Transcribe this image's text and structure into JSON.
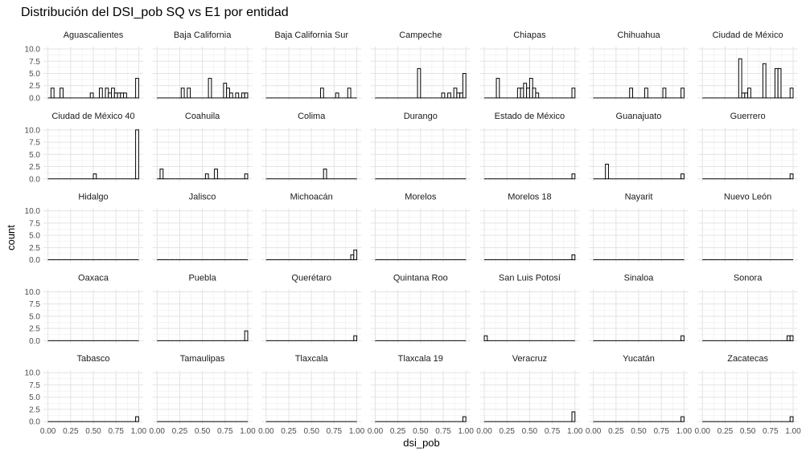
{
  "chart_data": {
    "type": "histogram-facets",
    "title": "Distribución del DSI_pob SQ vs E1 por entidad",
    "xlabel": "dsi_pob",
    "ylabel": "count",
    "xlim": [
      0,
      1
    ],
    "ylim": [
      0,
      10
    ],
    "x_ticks": [
      "0.00",
      "0.25",
      "0.50",
      "0.75",
      "1.00"
    ],
    "y_ticks": [
      "0.0",
      "2.5",
      "5.0",
      "7.5",
      "10.0"
    ],
    "bins": 30,
    "bar_color": "#000000",
    "fill_color": "#ffffff",
    "grid": true,
    "facets": [
      {
        "name": "Aguascalientes",
        "counts": [
          0,
          2,
          0,
          0,
          2,
          0,
          0,
          0,
          0,
          0,
          0,
          0,
          0,
          0,
          1,
          0,
          0,
          2,
          0,
          2,
          1,
          2,
          1,
          1,
          1,
          1,
          0,
          0,
          0,
          4
        ]
      },
      {
        "name": "Baja California",
        "counts": [
          0,
          0,
          0,
          0,
          0,
          0,
          0,
          0,
          2,
          0,
          2,
          0,
          0,
          0,
          0,
          0,
          0,
          4,
          0,
          0,
          0,
          0,
          3,
          2,
          1,
          0,
          1,
          0,
          1,
          1
        ]
      },
      {
        "name": "Baja California Sur",
        "counts": [
          0,
          0,
          0,
          0,
          0,
          0,
          0,
          0,
          0,
          0,
          0,
          0,
          0,
          0,
          0,
          0,
          0,
          0,
          2,
          0,
          0,
          0,
          0,
          1,
          0,
          0,
          0,
          2,
          0,
          0
        ]
      },
      {
        "name": "Campeche",
        "counts": [
          0,
          0,
          0,
          0,
          0,
          0,
          0,
          0,
          0,
          0,
          0,
          0,
          0,
          0,
          6,
          0,
          0,
          0,
          0,
          0,
          0,
          0,
          1,
          0,
          1,
          0,
          2,
          1,
          1,
          5
        ]
      },
      {
        "name": "Chiapas",
        "counts": [
          0,
          0,
          0,
          0,
          4,
          0,
          0,
          0,
          0,
          0,
          0,
          2,
          2,
          3,
          2,
          4,
          2,
          1,
          0,
          0,
          0,
          0,
          0,
          0,
          0,
          0,
          0,
          0,
          0,
          2
        ]
      },
      {
        "name": "Chihuahua",
        "counts": [
          0,
          0,
          0,
          0,
          0,
          0,
          0,
          0,
          0,
          0,
          0,
          0,
          2,
          0,
          0,
          0,
          0,
          2,
          0,
          0,
          0,
          0,
          0,
          2,
          0,
          0,
          0,
          0,
          0,
          2
        ]
      },
      {
        "name": "Ciudad de México",
        "counts": [
          0,
          0,
          0,
          0,
          0,
          0,
          0,
          0,
          0,
          0,
          0,
          0,
          8,
          1,
          1,
          2,
          0,
          0,
          0,
          0,
          7,
          0,
          0,
          0,
          6,
          6,
          0,
          0,
          0,
          2
        ]
      },
      {
        "name": "Ciudad de México 40",
        "counts": [
          0,
          0,
          0,
          0,
          0,
          0,
          0,
          0,
          0,
          0,
          0,
          0,
          0,
          0,
          0,
          1,
          0,
          0,
          0,
          0,
          0,
          0,
          0,
          0,
          0,
          0,
          0,
          0,
          0,
          10
        ]
      },
      {
        "name": "Coahuila",
        "counts": [
          0,
          2,
          0,
          0,
          0,
          0,
          0,
          0,
          0,
          0,
          0,
          0,
          0,
          0,
          0,
          0,
          1,
          0,
          0,
          2,
          0,
          0,
          0,
          0,
          0,
          0,
          0,
          0,
          0,
          1
        ]
      },
      {
        "name": "Colima",
        "counts": [
          0,
          0,
          0,
          0,
          0,
          0,
          0,
          0,
          0,
          0,
          0,
          0,
          0,
          0,
          0,
          0,
          0,
          0,
          0,
          2,
          0,
          0,
          0,
          0,
          0,
          0,
          0,
          0,
          0,
          0
        ]
      },
      {
        "name": "Durango",
        "counts": [
          0,
          0,
          0,
          0,
          0,
          0,
          0,
          0,
          0,
          0,
          0,
          0,
          0,
          0,
          0,
          0,
          0,
          0,
          0,
          0,
          0,
          0,
          0,
          0,
          0,
          0,
          0,
          0,
          0,
          0
        ]
      },
      {
        "name": "Estado de México",
        "counts": [
          0,
          0,
          0,
          0,
          0,
          0,
          0,
          0,
          0,
          0,
          0,
          0,
          0,
          0,
          0,
          0,
          0,
          0,
          0,
          0,
          0,
          0,
          0,
          0,
          0,
          0,
          0,
          0,
          0,
          1
        ]
      },
      {
        "name": "Guanajuato",
        "counts": [
          0,
          0,
          0,
          0,
          3,
          0,
          0,
          0,
          0,
          0,
          0,
          0,
          0,
          0,
          0,
          0,
          0,
          0,
          0,
          0,
          0,
          0,
          0,
          0,
          0,
          0,
          0,
          0,
          0,
          1
        ]
      },
      {
        "name": "Guerrero",
        "counts": [
          0,
          0,
          0,
          0,
          0,
          0,
          0,
          0,
          0,
          0,
          0,
          0,
          0,
          0,
          0,
          0,
          0,
          0,
          0,
          0,
          0,
          0,
          0,
          0,
          0,
          0,
          0,
          0,
          0,
          1
        ]
      },
      {
        "name": "Hidalgo",
        "counts": [
          0,
          0,
          0,
          0,
          0,
          0,
          0,
          0,
          0,
          0,
          0,
          0,
          0,
          0,
          0,
          0,
          0,
          0,
          0,
          0,
          0,
          0,
          0,
          0,
          0,
          0,
          0,
          0,
          0,
          0
        ]
      },
      {
        "name": "Jalisco",
        "counts": [
          0,
          0,
          0,
          0,
          0,
          0,
          0,
          0,
          0,
          0,
          0,
          0,
          0,
          0,
          0,
          0,
          0,
          0,
          0,
          0,
          0,
          0,
          0,
          0,
          0,
          0,
          0,
          0,
          0,
          0
        ]
      },
      {
        "name": "Michoacán",
        "counts": [
          0,
          0,
          0,
          0,
          0,
          0,
          0,
          0,
          0,
          0,
          0,
          0,
          0,
          0,
          0,
          0,
          0,
          0,
          0,
          0,
          0,
          0,
          0,
          0,
          0,
          0,
          0,
          0,
          1,
          2
        ]
      },
      {
        "name": "Morelos",
        "counts": [
          0,
          0,
          0,
          0,
          0,
          0,
          0,
          0,
          0,
          0,
          0,
          0,
          0,
          0,
          0,
          0,
          0,
          0,
          0,
          0,
          0,
          0,
          0,
          0,
          0,
          0,
          0,
          0,
          0,
          0
        ]
      },
      {
        "name": "Morelos 18",
        "counts": [
          0,
          0,
          0,
          0,
          0,
          0,
          0,
          0,
          0,
          0,
          0,
          0,
          0,
          0,
          0,
          0,
          0,
          0,
          0,
          0,
          0,
          0,
          0,
          0,
          0,
          0,
          0,
          0,
          0,
          1
        ]
      },
      {
        "name": "Nayarit",
        "counts": [
          0,
          0,
          0,
          0,
          0,
          0,
          0,
          0,
          0,
          0,
          0,
          0,
          0,
          0,
          0,
          0,
          0,
          0,
          0,
          0,
          0,
          0,
          0,
          0,
          0,
          0,
          0,
          0,
          0,
          0
        ]
      },
      {
        "name": "Nuevo León",
        "counts": [
          0,
          0,
          0,
          0,
          0,
          0,
          0,
          0,
          0,
          0,
          0,
          0,
          0,
          0,
          0,
          0,
          0,
          0,
          0,
          0,
          0,
          0,
          0,
          0,
          0,
          0,
          0,
          0,
          0,
          0
        ]
      },
      {
        "name": "Oaxaca",
        "counts": [
          0,
          0,
          0,
          0,
          0,
          0,
          0,
          0,
          0,
          0,
          0,
          0,
          0,
          0,
          0,
          0,
          0,
          0,
          0,
          0,
          0,
          0,
          0,
          0,
          0,
          0,
          0,
          0,
          0,
          0
        ]
      },
      {
        "name": "Puebla",
        "counts": [
          0,
          0,
          0,
          0,
          0,
          0,
          0,
          0,
          0,
          0,
          0,
          0,
          0,
          0,
          0,
          0,
          0,
          0,
          0,
          0,
          0,
          0,
          0,
          0,
          0,
          0,
          0,
          0,
          0,
          2
        ]
      },
      {
        "name": "Querétaro",
        "counts": [
          0,
          0,
          0,
          0,
          0,
          0,
          0,
          0,
          0,
          0,
          0,
          0,
          0,
          0,
          0,
          0,
          0,
          0,
          0,
          0,
          0,
          0,
          0,
          0,
          0,
          0,
          0,
          0,
          0,
          1
        ]
      },
      {
        "name": "Quintana Roo",
        "counts": [
          0,
          0,
          0,
          0,
          0,
          0,
          0,
          0,
          0,
          0,
          0,
          0,
          0,
          0,
          0,
          0,
          0,
          0,
          0,
          0,
          0,
          0,
          0,
          0,
          0,
          0,
          0,
          0,
          0,
          0
        ]
      },
      {
        "name": "San Luis Potosí",
        "counts": [
          1,
          0,
          0,
          0,
          0,
          0,
          0,
          0,
          0,
          0,
          0,
          0,
          0,
          0,
          0,
          0,
          0,
          0,
          0,
          0,
          0,
          0,
          0,
          0,
          0,
          0,
          0,
          0,
          0,
          0
        ]
      },
      {
        "name": "Sinaloa",
        "counts": [
          0,
          0,
          0,
          0,
          0,
          0,
          0,
          0,
          0,
          0,
          0,
          0,
          0,
          0,
          0,
          0,
          0,
          0,
          0,
          0,
          0,
          0,
          0,
          0,
          0,
          0,
          0,
          0,
          0,
          1
        ]
      },
      {
        "name": "Sonora",
        "counts": [
          0,
          0,
          0,
          0,
          0,
          0,
          0,
          0,
          0,
          0,
          0,
          0,
          0,
          0,
          0,
          0,
          0,
          0,
          0,
          0,
          0,
          0,
          0,
          0,
          0,
          0,
          0,
          0,
          1,
          1
        ]
      },
      {
        "name": "Tabasco",
        "counts": [
          0,
          0,
          0,
          0,
          0,
          0,
          0,
          0,
          0,
          0,
          0,
          0,
          0,
          0,
          0,
          0,
          0,
          0,
          0,
          0,
          0,
          0,
          0,
          0,
          0,
          0,
          0,
          0,
          0,
          1
        ]
      },
      {
        "name": "Tamaulipas",
        "counts": [
          0,
          0,
          0,
          0,
          0,
          0,
          0,
          0,
          0,
          0,
          0,
          0,
          0,
          0,
          0,
          0,
          0,
          0,
          0,
          0,
          0,
          0,
          0,
          0,
          0,
          0,
          0,
          0,
          0,
          0
        ]
      },
      {
        "name": "Tlaxcala",
        "counts": [
          0,
          0,
          0,
          0,
          0,
          0,
          0,
          0,
          0,
          0,
          0,
          0,
          0,
          0,
          0,
          0,
          0,
          0,
          0,
          0,
          0,
          0,
          0,
          0,
          0,
          0,
          0,
          0,
          0,
          0
        ]
      },
      {
        "name": "Tlaxcala 19",
        "counts": [
          0,
          0,
          0,
          0,
          0,
          0,
          0,
          0,
          0,
          0,
          0,
          0,
          0,
          0,
          0,
          0,
          0,
          0,
          0,
          0,
          0,
          0,
          0,
          0,
          0,
          0,
          0,
          0,
          0,
          1
        ]
      },
      {
        "name": "Veracruz",
        "counts": [
          0,
          0,
          0,
          0,
          0,
          0,
          0,
          0,
          0,
          0,
          0,
          0,
          0,
          0,
          0,
          0,
          0,
          0,
          0,
          0,
          0,
          0,
          0,
          0,
          0,
          0,
          0,
          0,
          0,
          2
        ]
      },
      {
        "name": "Yucatán",
        "counts": [
          0,
          0,
          0,
          0,
          0,
          0,
          0,
          0,
          0,
          0,
          0,
          0,
          0,
          0,
          0,
          0,
          0,
          0,
          0,
          0,
          0,
          0,
          0,
          0,
          0,
          0,
          0,
          0,
          0,
          1
        ]
      },
      {
        "name": "Zacatecas",
        "counts": [
          0,
          0,
          0,
          0,
          0,
          0,
          0,
          0,
          0,
          0,
          0,
          0,
          0,
          0,
          0,
          0,
          0,
          0,
          0,
          0,
          0,
          0,
          0,
          0,
          0,
          0,
          0,
          0,
          0,
          1
        ]
      }
    ]
  }
}
